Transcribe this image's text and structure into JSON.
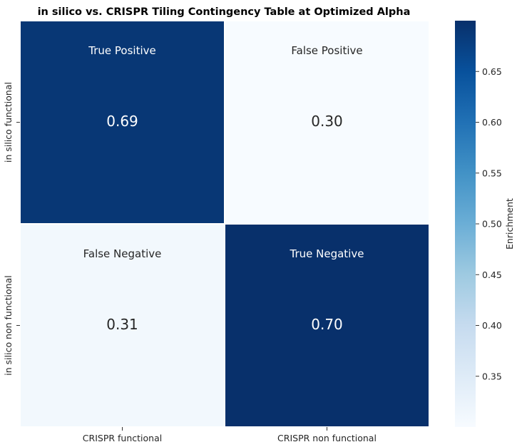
{
  "chart_data": {
    "type": "heatmap",
    "title": "in silico vs. CRISPR Tiling Contingency Table at Optimized Alpha",
    "x_categories": [
      "CRISPR functional",
      "CRISPR non functional"
    ],
    "y_categories": [
      "in silico functional",
      "in silico non functional"
    ],
    "cells": [
      [
        {
          "label": "True Positive",
          "value": 0.69,
          "display": "0.69"
        },
        {
          "label": "False Positive",
          "value": 0.3,
          "display": "0.30"
        }
      ],
      [
        {
          "label": "False Negative",
          "value": 0.31,
          "display": "0.31"
        },
        {
          "label": "True Negative",
          "value": 0.7,
          "display": "0.70"
        }
      ]
    ],
    "colorbar": {
      "label": "Enrichment",
      "range": [
        0.3,
        0.7
      ],
      "ticks": [
        "0.35",
        "0.40",
        "0.45",
        "0.50",
        "0.55",
        "0.60",
        "0.65"
      ],
      "colormap": "Blues",
      "low_color": "#f7fbff",
      "high_color": "#08306b"
    }
  }
}
